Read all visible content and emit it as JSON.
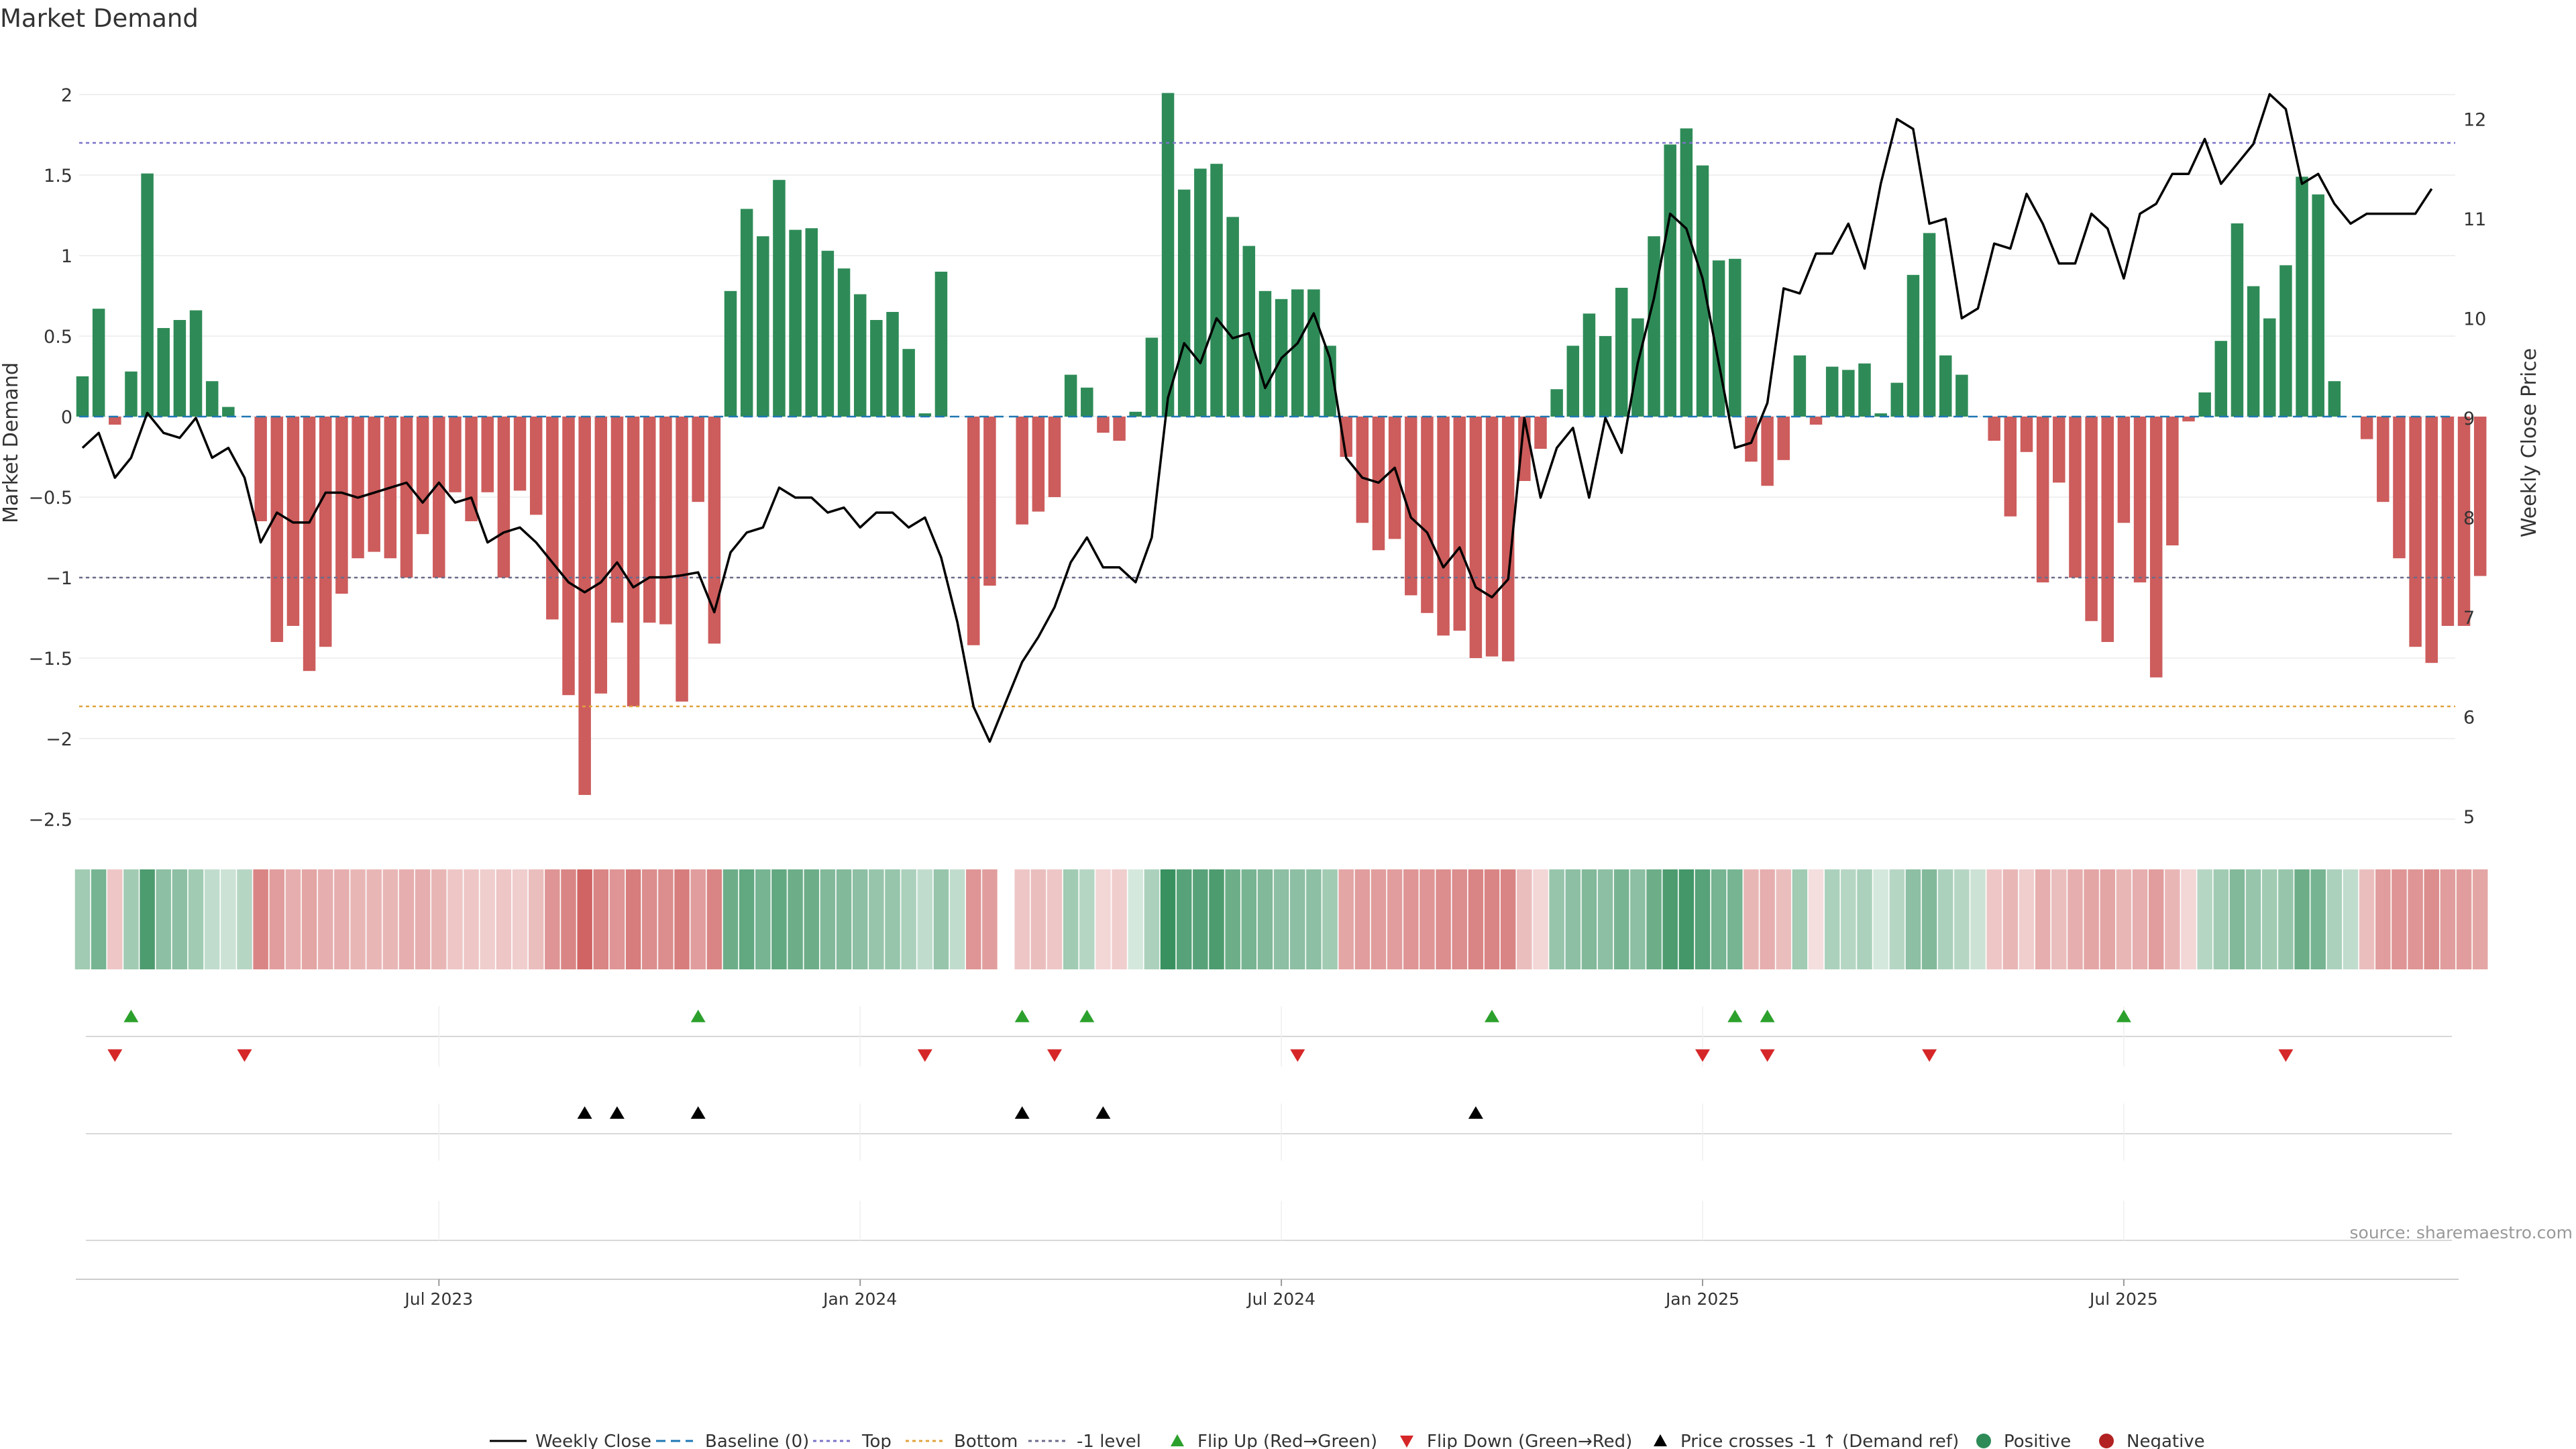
{
  "chart_data": {
    "type": "bar",
    "title": "Market Demand",
    "ylabel_left": "Market Demand",
    "ylabel_right": "Weekly Close Price",
    "source": "source: sharemaestro.com",
    "ylim_left": [
      -2.6,
      2.25
    ],
    "ylim_right": [
      4.8,
      12.5
    ],
    "yticks_left": [
      2,
      1.5,
      1,
      0.5,
      0,
      -0.5,
      -1,
      -1.5,
      -2,
      -2.5
    ],
    "yticks_left_labels": [
      "2",
      "1.5",
      "1",
      "0.5",
      "0",
      "−0.5",
      "−1",
      "−1.5",
      "−2",
      "−2.5"
    ],
    "yticks_right": [
      5,
      6,
      7,
      8,
      9,
      10,
      11,
      12
    ],
    "x_tick_labels": [
      "Jul 2023",
      "Jan 2024",
      "Jul 2024",
      "Jan 2025",
      "Jul 2025"
    ],
    "x_tick_weeks": [
      22,
      48,
      74,
      100,
      126
    ],
    "reference_lines": {
      "top": 1.7,
      "bottom": -1.8,
      "minus_one": -1.0,
      "baseline": 0
    },
    "demand": [
      0.25,
      0.67,
      -0.05,
      0.28,
      1.51,
      0.55,
      0.6,
      0.66,
      0.22,
      0.06,
      0,
      -0.65,
      -1.4,
      -1.3,
      -1.58,
      -1.43,
      -1.1,
      -0.88,
      -0.84,
      -0.88,
      -1.0,
      -0.73,
      -1.0,
      -0.47,
      -0.65,
      -0.47,
      -1.0,
      -0.46,
      -0.61,
      -1.26,
      -1.73,
      -2.35,
      -1.72,
      -1.28,
      -1.8,
      -1.28,
      -1.29,
      -1.77,
      -0.53,
      -1.41,
      0.78,
      1.29,
      1.12,
      1.47,
      1.16,
      1.17,
      1.03,
      0.92,
      0.76,
      0.6,
      0.65,
      0.42,
      0.02,
      0.9,
      0,
      -1.42,
      -1.05,
      0,
      -0.67,
      -0.59,
      -0.5,
      0.26,
      0.18,
      -0.1,
      -0.15,
      0.03,
      0.49,
      2.01,
      1.41,
      1.54,
      1.57,
      1.24,
      1.06,
      0.78,
      0.73,
      0.79,
      0.79,
      0.44,
      -0.25,
      -0.66,
      -0.83,
      -0.76,
      -1.11,
      -1.22,
      -1.36,
      -1.33,
      -1.5,
      -1.49,
      -1.52,
      -0.4,
      -0.2,
      0.17,
      0.44,
      0.64,
      0.5,
      0.8,
      0.61,
      1.12,
      1.69,
      1.79,
      1.56,
      0.97,
      0.98,
      -0.28,
      -0.43,
      -0.27,
      0.38,
      -0.05,
      0.31,
      0.29,
      0.33,
      0.02,
      0.21,
      0.88,
      1.14,
      0.38,
      0.26,
      0,
      -0.15,
      -0.62,
      -0.22,
      -1.03,
      -0.41,
      -1.0,
      -1.27,
      -1.4,
      -0.66,
      -1.03,
      -1.62,
      -0.8,
      -0.03,
      0.15,
      0.47,
      1.2,
      0.81,
      0.61,
      0.94,
      1.49,
      1.38,
      0.22,
      0,
      -0.14,
      -0.53,
      -0.88,
      -1.43,
      -1.53,
      -1.3,
      -1.3,
      -0.99
    ],
    "weekly_close": [
      8.7,
      8.85,
      8.4,
      8.6,
      9.05,
      8.85,
      8.8,
      9.0,
      8.6,
      8.7,
      8.4,
      7.75,
      8.05,
      7.95,
      7.95,
      8.25,
      8.25,
      8.2,
      8.25,
      8.3,
      8.35,
      8.15,
      8.35,
      8.15,
      8.2,
      7.75,
      7.85,
      7.9,
      7.75,
      7.55,
      7.35,
      7.25,
      7.35,
      7.55,
      7.3,
      7.4,
      7.4,
      7.42,
      7.45,
      7.05,
      7.65,
      7.85,
      7.9,
      8.3,
      8.2,
      8.2,
      8.05,
      8.1,
      7.9,
      8.05,
      8.05,
      7.9,
      8.0,
      7.6,
      6.95,
      6.1,
      5.75,
      6.15,
      6.55,
      6.8,
      7.1,
      7.55,
      7.8,
      7.5,
      7.5,
      7.35,
      7.8,
      9.2,
      9.75,
      9.55,
      10.0,
      9.8,
      9.85,
      9.3,
      9.6,
      9.75,
      10.05,
      9.6,
      8.6,
      8.4,
      8.35,
      8.5,
      8.0,
      7.85,
      7.5,
      7.7,
      7.3,
      7.2,
      7.38,
      9.0,
      8.2,
      8.7,
      8.9,
      8.2,
      9.0,
      8.65,
      9.55,
      10.2,
      11.05,
      10.9,
      10.4,
      9.55,
      8.7,
      8.75,
      9.15,
      10.3,
      10.25,
      10.65,
      10.65,
      10.95,
      10.5,
      11.35,
      12.0,
      11.9,
      10.95,
      11.0,
      10.0,
      10.1,
      10.75,
      10.7,
      11.25,
      10.95,
      10.55,
      10.55,
      11.05,
      10.9,
      10.4,
      11.05,
      11.15,
      11.45,
      11.45,
      11.8,
      11.35,
      11.55,
      11.75,
      12.25,
      12.1,
      11.35,
      11.45,
      11.15,
      10.95,
      11.05,
      11.05,
      11.05,
      11.05,
      11.3
    ],
    "heat_intensity": [
      0.45,
      0.65,
      0.35,
      0.45,
      0.85,
      0.55,
      0.55,
      0.45,
      0.3,
      0.25,
      0.35,
      0.75,
      0.6,
      0.5,
      0.55,
      0.5,
      0.5,
      0.45,
      0.45,
      0.45,
      0.5,
      0.5,
      0.45,
      0.35,
      0.35,
      0.3,
      0.35,
      0.3,
      0.4,
      0.65,
      0.75,
      0.95,
      0.75,
      0.65,
      0.8,
      0.7,
      0.7,
      0.8,
      0.6,
      0.75,
      0.7,
      0.75,
      0.65,
      0.75,
      0.7,
      0.7,
      0.6,
      0.6,
      0.55,
      0.5,
      0.5,
      0.4,
      0.3,
      0.5,
      0.3,
      0.65,
      0.6,
      0,
      0.35,
      0.4,
      0.35,
      0.45,
      0.35,
      0.25,
      0.3,
      0.2,
      0.4,
      0.95,
      0.8,
      0.8,
      0.85,
      0.7,
      0.65,
      0.6,
      0.55,
      0.55,
      0.55,
      0.45,
      0.55,
      0.6,
      0.6,
      0.6,
      0.65,
      0.65,
      0.7,
      0.7,
      0.75,
      0.75,
      0.75,
      0.4,
      0.25,
      0.5,
      0.55,
      0.6,
      0.55,
      0.65,
      0.55,
      0.7,
      0.85,
      0.9,
      0.8,
      0.65,
      0.65,
      0.45,
      0.5,
      0.4,
      0.45,
      0.2,
      0.4,
      0.35,
      0.4,
      0.2,
      0.35,
      0.55,
      0.6,
      0.4,
      0.35,
      0.25,
      0.35,
      0.45,
      0.3,
      0.5,
      0.4,
      0.5,
      0.55,
      0.55,
      0.45,
      0.5,
      0.6,
      0.45,
      0.25,
      0.35,
      0.45,
      0.6,
      0.5,
      0.45,
      0.5,
      0.7,
      0.65,
      0.4,
      0.3,
      0.4,
      0.6,
      0.65,
      0.65,
      0.7,
      0.6,
      0.6,
      0.55
    ],
    "flip_up_weeks": [
      3,
      38,
      58,
      62,
      87,
      102,
      104,
      126
    ],
    "flip_down_weeks": [
      2,
      10,
      52,
      60,
      75,
      100,
      104,
      114,
      136
    ],
    "cross_weeks": [
      31,
      33,
      38,
      58,
      63,
      86
    ],
    "legend": [
      "Weekly Close",
      "Baseline (0)",
      "Top",
      "Bottom",
      "-1 level",
      "Flip Up (Red→Green)",
      "Flip Down (Green→Red)",
      "Price crosses -1 ↑ (Demand ref)",
      "Positive",
      "Negative"
    ]
  },
  "colors": {
    "positive": "#2e8b57",
    "negative": "#cd5c5c",
    "flip_up": "#2ca02c",
    "flip_down": "#d62728",
    "close": "#000000",
    "top": "#7b73c9",
    "bottom": "#e0a23c",
    "minus_one": "#6b6b8a",
    "baseline": "#1f77b4"
  }
}
